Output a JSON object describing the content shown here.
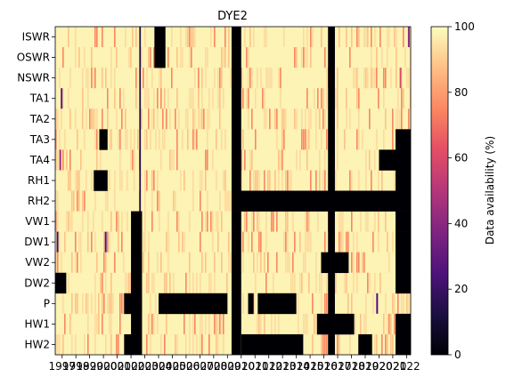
{
  "chart_data": {
    "type": "heatmap",
    "title": "DYE2",
    "xlabel": "",
    "ylabel": "",
    "colorbar_label": "Data availability (%)",
    "colormap": "magma",
    "clim": [
      0,
      100
    ],
    "colorbar_ticks": [
      "0",
      "20",
      "40",
      "60",
      "80",
      "100"
    ],
    "rows": [
      "ISWR",
      "OSWR",
      "NSWR",
      "TA1",
      "TA2",
      "TA3",
      "TA4",
      "RH1",
      "RH2",
      "VW1",
      "DW1",
      "VW2",
      "DW2",
      "P",
      "HW1",
      "HW2"
    ],
    "x_range": [
      1996.5,
      2022.3
    ],
    "x_tick_labels": [
      "1997",
      "1998",
      "1999",
      "2000",
      "2001",
      "2002",
      "2003",
      "2004",
      "2005",
      "2006",
      "2007",
      "2008",
      "2009",
      "2010",
      "2011",
      "2012",
      "2013",
      "2014",
      "2015",
      "2016",
      "2017",
      "2018",
      "2019",
      "2020",
      "2021",
      "2022"
    ],
    "default_value": 97,
    "missing_blocks": [
      {
        "row": "ISWR",
        "from": 2003.7,
        "to": 2004.5
      },
      {
        "row": "ISWR",
        "from": 2009.3,
        "to": 2010.0
      },
      {
        "row": "ISWR",
        "from": 2016.3,
        "to": 2016.8
      },
      {
        "row": "OSWR",
        "from": 2003.7,
        "to": 2004.5
      },
      {
        "row": "OSWR",
        "from": 2009.3,
        "to": 2010.0
      },
      {
        "row": "OSWR",
        "from": 2016.3,
        "to": 2016.8
      },
      {
        "row": "NSWR",
        "from": 2009.3,
        "to": 2010.0
      },
      {
        "row": "NSWR",
        "from": 2016.3,
        "to": 2016.8
      },
      {
        "row": "TA1",
        "from": 2009.3,
        "to": 2010.0
      },
      {
        "row": "TA1",
        "from": 2016.3,
        "to": 2016.8
      },
      {
        "row": "TA2",
        "from": 2009.3,
        "to": 2010.0
      },
      {
        "row": "TA2",
        "from": 2016.3,
        "to": 2016.8
      },
      {
        "row": "TA3",
        "from": 1999.7,
        "to": 2000.3
      },
      {
        "row": "TA3",
        "from": 2009.3,
        "to": 2010.0
      },
      {
        "row": "TA3",
        "from": 2016.3,
        "to": 2016.8
      },
      {
        "row": "TA3",
        "from": 2021.2,
        "to": 2022.3
      },
      {
        "row": "TA4",
        "from": 2009.3,
        "to": 2010.0
      },
      {
        "row": "TA4",
        "from": 2016.3,
        "to": 2016.8
      },
      {
        "row": "TA4",
        "from": 2020.0,
        "to": 2022.3
      },
      {
        "row": "RH1",
        "from": 1999.3,
        "to": 2000.3
      },
      {
        "row": "RH1",
        "from": 2009.3,
        "to": 2010.0
      },
      {
        "row": "RH1",
        "from": 2016.3,
        "to": 2016.8
      },
      {
        "row": "RH1",
        "from": 2021.2,
        "to": 2022.3
      },
      {
        "row": "RH2",
        "from": 2009.3,
        "to": 2022.3
      },
      {
        "row": "VW1",
        "from": 2002.0,
        "to": 2002.8
      },
      {
        "row": "VW1",
        "from": 2009.3,
        "to": 2010.0
      },
      {
        "row": "VW1",
        "from": 2016.3,
        "to": 2016.8
      },
      {
        "row": "VW1",
        "from": 2021.2,
        "to": 2022.3
      },
      {
        "row": "DW1",
        "from": 2002.0,
        "to": 2002.8
      },
      {
        "row": "DW1",
        "from": 2009.3,
        "to": 2010.0
      },
      {
        "row": "DW1",
        "from": 2016.3,
        "to": 2016.8
      },
      {
        "row": "DW1",
        "from": 2021.2,
        "to": 2022.3
      },
      {
        "row": "VW2",
        "from": 2002.0,
        "to": 2002.8
      },
      {
        "row": "VW2",
        "from": 2009.3,
        "to": 2010.0
      },
      {
        "row": "VW2",
        "from": 2015.8,
        "to": 2017.8
      },
      {
        "row": "VW2",
        "from": 2021.2,
        "to": 2022.3
      },
      {
        "row": "DW2",
        "from": 1996.5,
        "to": 1997.3
      },
      {
        "row": "DW2",
        "from": 2002.0,
        "to": 2002.8
      },
      {
        "row": "DW2",
        "from": 2009.3,
        "to": 2010.0
      },
      {
        "row": "DW2",
        "from": 2016.3,
        "to": 2016.8
      },
      {
        "row": "DW2",
        "from": 2021.2,
        "to": 2022.3
      },
      {
        "row": "P",
        "from": 2001.5,
        "to": 2002.8
      },
      {
        "row": "P",
        "from": 2004.0,
        "to": 2009.0
      },
      {
        "row": "P",
        "from": 2009.3,
        "to": 2010.0
      },
      {
        "row": "P",
        "from": 2010.5,
        "to": 2010.9
      },
      {
        "row": "P",
        "from": 2011.2,
        "to": 2014.0
      },
      {
        "row": "P",
        "from": 2016.3,
        "to": 2016.8
      },
      {
        "row": "HW1",
        "from": 2002.0,
        "to": 2002.8
      },
      {
        "row": "HW1",
        "from": 2009.3,
        "to": 2010.0
      },
      {
        "row": "HW1",
        "from": 2015.5,
        "to": 2018.2
      },
      {
        "row": "HW1",
        "from": 2021.2,
        "to": 2022.3
      },
      {
        "row": "HW2",
        "from": 2001.5,
        "to": 2002.8
      },
      {
        "row": "HW2",
        "from": 2009.3,
        "to": 2010.0
      },
      {
        "row": "HW2",
        "from": 2010.0,
        "to": 2014.5
      },
      {
        "row": "HW2",
        "from": 2016.3,
        "to": 2016.8
      },
      {
        "row": "HW2",
        "from": 2018.5,
        "to": 2019.5
      },
      {
        "row": "HW2",
        "from": 2021.2,
        "to": 2022.3
      }
    ],
    "dark_streaks": [
      {
        "row": "all",
        "x": 2002.6,
        "value": 15
      },
      {
        "row": "TA1",
        "x": 1996.9,
        "value": 30
      },
      {
        "row": "TA4",
        "x": 1996.8,
        "value": 45
      },
      {
        "row": "DW1",
        "x": 1996.6,
        "value": 20
      },
      {
        "row": "DW1",
        "x": 2000.1,
        "value": 25
      },
      {
        "row": "P",
        "x": 2019.8,
        "value": 25
      },
      {
        "row": "HW2",
        "x": 2009.6,
        "value": 30
      },
      {
        "row": "NSWR",
        "x": 2021.5,
        "value": 60
      },
      {
        "row": "ISWR",
        "x": 2022.1,
        "value": 40
      }
    ]
  }
}
